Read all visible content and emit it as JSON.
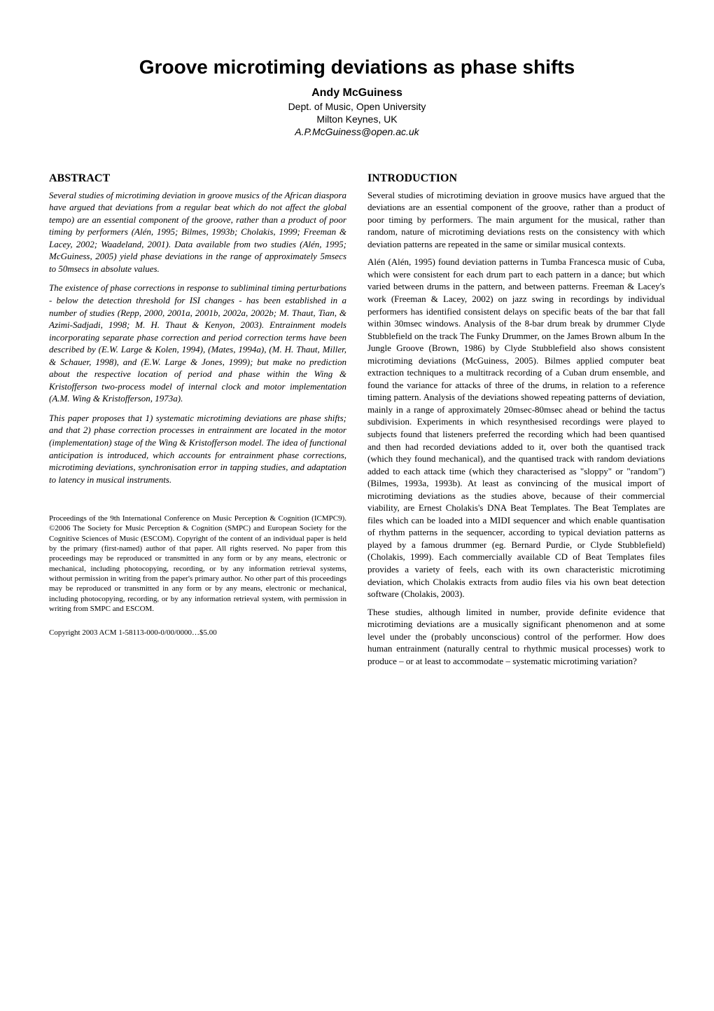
{
  "title": "Groove microtiming deviations as phase shifts",
  "author": "Andy McGuiness",
  "affiliation_line1": "Dept. of Music, Open University",
  "affiliation_line2": "Milton Keynes, UK",
  "email": "A.P.McGuiness@open.ac.uk",
  "abstract_header": "ABSTRACT",
  "abstract_p1": "Several studies of microtiming deviation in groove musics of the African diaspora have argued that deviations from a regular beat which do not affect the global tempo) are an essential component of the groove, rather than a product of poor timing by performers (Alén, 1995; Bilmes, 1993b; Cholakis, 1999; Freeman & Lacey, 2002; Waadeland, 2001). Data available from two studies (Alén, 1995; McGuiness, 2005) yield phase deviations in the range of approximately 5msecs to 50msecs in absolute values.",
  "abstract_p2": "The existence of phase corrections in response to subliminal timing perturbations - below the detection threshold for ISI changes - has been established in a number of studies (Repp, 2000, 2001a, 2001b, 2002a, 2002b; M. Thaut, Tian, & Azimi-Sadjadi, 1998; M. H. Thaut & Kenyon, 2003). Entrainment models incorporating separate phase correction and period correction terms have been described by (E.W. Large & Kolen, 1994), (Mates, 1994a), (M. H. Thaut, Miller, & Schauer, 1998), and (E.W. Large & Jones, 1999); but make no prediction about the respective location of period and phase within the Wing & Kristofferson two-process model of internal clock and motor implementation (A.M. Wing & Kristofferson, 1973a).",
  "abstract_p3": "This paper proposes that 1) systematic microtiming deviations are phase shifts; and that 2) phase correction processes in entrainment are located in the motor (implementation) stage of the Wing & Kristofferson model. The idea of functional anticipation is introduced, which accounts for entrainment phase corrections, microtiming deviations, synchronisation error in tapping studies, and adaptation to latency in musical instruments.",
  "proceedings_note": "Proceedings of the 9th International Conference on Music Perception & Cognition (ICMPC9). ©2006 The Society for Music Perception & Cognition (SMPC) and European Society for the Cognitive Sciences of Music (ESCOM). Copyright of the content of an individual paper is held by the primary (first-named) author of that paper. All rights reserved. No paper from this proceedings may be reproduced or transmitted in any form or by any means, electronic or mechanical, including photocopying, recording, or by any information retrieval systems, without permission in writing from the paper's primary author. No other part of this proceedings may be reproduced or transmitted in any form or by any means, electronic or mechanical, including photocopying, recording, or by any information retrieval system, with permission in writing from SMPC and ESCOM.",
  "copyright_note": "Copyright 2003 ACM 1-58113-000-0/00/0000…$5.00",
  "introduction_header": "INTRODUCTION",
  "intro_p1": "Several studies of microtiming deviation in groove musics have argued that the deviations are an essential component of the groove, rather than a product of poor timing by performers. The main argument for the musical, rather than random, nature of microtiming deviations rests on the consistency with which deviation patterns are repeated in the same or similar musical contexts.",
  "intro_p2": "Alén (Alén, 1995) found deviation patterns in Tumba Francesca music of Cuba, which were consistent for each drum part to each pattern in a dance; but which varied between drums in the pattern, and between patterns. Freeman & Lacey's work (Freeman & Lacey, 2002) on jazz swing in recordings by individual performers has identified consistent delays on specific beats of the bar that fall within 30msec windows. Analysis of the 8-bar drum break by drummer Clyde Stubblefield on the track The Funky Drummer, on the James Brown album In the Jungle Groove (Brown, 1986) by Clyde Stubblefield also shows consistent microtiming deviations (McGuiness, 2005). Bilmes applied computer beat extraction techniques to a multitrack recording of a Cuban drum ensemble, and found the variance for attacks of three of the drums, in relation to a reference timing pattern. Analysis of the deviations showed repeating patterns of deviation, mainly in a range of approximately 20msec-80msec ahead or behind the tactus subdivision. Experiments in which resynthesised recordings were played to subjects found that listeners preferred the recording which had been quantised and then had recorded deviations added to it, over both the quantised track (which they found mechanical), and the quantised track with random deviations added to each attack time (which they characterised as \"sloppy\" or \"random\")(Bilmes, 1993a, 1993b). At least as convincing of the musical import of microtiming deviations as the studies above, because of their commercial viability, are Ernest Cholakis's DNA Beat Templates. The Beat Templates are files which can be loaded into a MIDI sequencer and which enable quantisation of rhythm patterns in the sequencer, according to typical deviation patterns as played by a famous drummer (eg. Bernard Purdie, or Clyde Stubblefield)(Cholakis, 1999). Each commercially available CD of Beat Templates files provides a variety of feels, each with its own characteristic microtiming deviation, which Cholakis extracts from audio files via his own beat detection software (Cholakis, 2003).",
  "intro_p3": "These studies, although limited in number, provide definite evidence that microtiming deviations are a musically significant phenomenon and at some level under the (probably unconscious) control of the performer. How does human entrainment (naturally central to rhythmic musical processes) work to produce – or at least to accommodate – systematic microtiming variation?"
}
